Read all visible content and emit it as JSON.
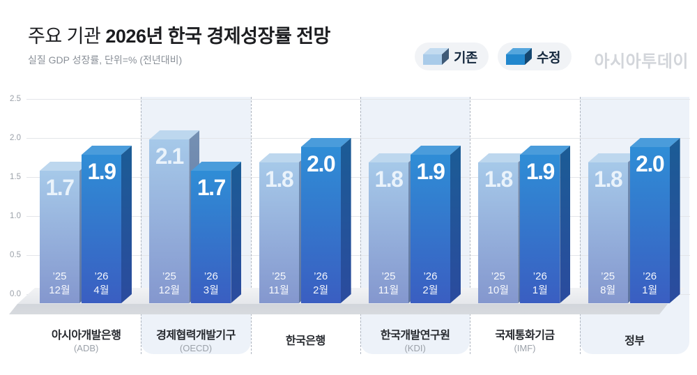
{
  "header": {
    "title_prefix": "주요 기관",
    "title_bold": "2026년 한국 경제성장률 전망",
    "subtitle": "실질 GDP 성장률, 단위=% (전년대비)",
    "logo": "아시아투데이"
  },
  "legend": {
    "existing_label": "기존",
    "revised_label": "수정"
  },
  "colors": {
    "existing_front_top": "#a6c9e9",
    "existing_front_bottom": "#8497ce",
    "revised_front_top": "#2f8dd6",
    "revised_front_bottom": "#3a5ec1",
    "panel_highlight": "#edf2f9",
    "floor": "#dcdfe4"
  },
  "chart_data": {
    "type": "bar",
    "title": "주요 기관 2026년 한국 경제성장률 전망",
    "subtitle": "실질 GDP 성장률, 단위=% (전년대비)",
    "ylabel": "실질 GDP 성장률 (%)",
    "ylim": [
      0.0,
      2.5
    ],
    "yticks": [
      "0.0",
      "0.5",
      "1.0",
      "1.5",
      "2.0",
      "2.5"
    ],
    "grid": true,
    "legend_position": "top-right",
    "series_names": [
      "기존",
      "수정"
    ],
    "groups": [
      {
        "name": "아시아개발은행",
        "sub": "(ADB)",
        "highlighted": false,
        "bars": [
          {
            "series": "기존",
            "value": 1.7,
            "value_label": "1.7",
            "date_line1": "’25",
            "date_line2": "12월"
          },
          {
            "series": "수정",
            "value": 1.9,
            "value_label": "1.9",
            "date_line1": "’26",
            "date_line2": "4월"
          }
        ]
      },
      {
        "name": "경제협력개발기구",
        "sub": "(OECD)",
        "highlighted": true,
        "bars": [
          {
            "series": "기존",
            "value": 2.1,
            "value_label": "2.1",
            "date_line1": "’25",
            "date_line2": "12월"
          },
          {
            "series": "수정",
            "value": 1.7,
            "value_label": "1.7",
            "date_line1": "’26",
            "date_line2": "3월"
          }
        ]
      },
      {
        "name": "한국은행",
        "sub": "",
        "highlighted": false,
        "bars": [
          {
            "series": "기존",
            "value": 1.8,
            "value_label": "1.8",
            "date_line1": "’25",
            "date_line2": "11월"
          },
          {
            "series": "수정",
            "value": 2.0,
            "value_label": "2.0",
            "date_line1": "’26",
            "date_line2": "2월"
          }
        ]
      },
      {
        "name": "한국개발연구원",
        "sub": "(KDI)",
        "highlighted": true,
        "bars": [
          {
            "series": "기존",
            "value": 1.8,
            "value_label": "1.8",
            "date_line1": "’25",
            "date_line2": "11월"
          },
          {
            "series": "수정",
            "value": 1.9,
            "value_label": "1.9",
            "date_line1": "’26",
            "date_line2": "2월"
          }
        ]
      },
      {
        "name": "국제통화기금",
        "sub": "(IMF)",
        "highlighted": false,
        "bars": [
          {
            "series": "기존",
            "value": 1.8,
            "value_label": "1.8",
            "date_line1": "’25",
            "date_line2": "10월"
          },
          {
            "series": "수정",
            "value": 1.9,
            "value_label": "1.9",
            "date_line1": "’26",
            "date_line2": "1월"
          }
        ]
      },
      {
        "name": "정부",
        "sub": "",
        "highlighted": true,
        "bars": [
          {
            "series": "기존",
            "value": 1.8,
            "value_label": "1.8",
            "date_line1": "’25",
            "date_line2": "8월"
          },
          {
            "series": "수정",
            "value": 2.0,
            "value_label": "2.0",
            "date_line1": "’26",
            "date_line2": "1월"
          }
        ]
      }
    ]
  }
}
